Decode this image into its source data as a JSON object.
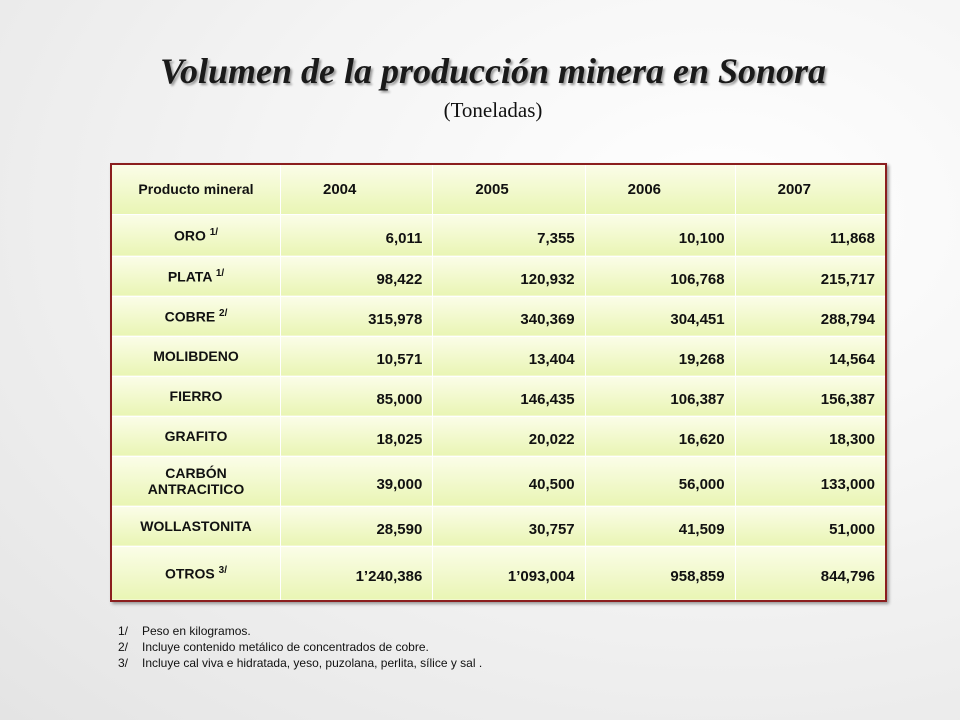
{
  "header": {
    "title": "Volumen de la producción minera en Sonora",
    "subtitle": "(Toneladas)"
  },
  "table": {
    "columns": [
      "Producto mineral",
      "2004",
      "2005",
      "2006",
      "2007"
    ],
    "rows": [
      {
        "product": "ORO",
        "note": "1/",
        "values": [
          "6,011",
          "7,355",
          "10,100",
          "11,868"
        ]
      },
      {
        "product": "PLATA",
        "note": "1/",
        "values": [
          "98,422",
          "120,932",
          "106,768",
          "215,717"
        ]
      },
      {
        "product": "COBRE",
        "note": "2/",
        "values": [
          "315,978",
          "340,369",
          "304,451",
          "288,794"
        ]
      },
      {
        "product": "MOLIBDENO",
        "values": [
          "10,571",
          "13,404",
          "19,268",
          "14,564"
        ]
      },
      {
        "product": "FIERRO",
        "values": [
          "85,000",
          "146,435",
          "106,387",
          "156,387"
        ]
      },
      {
        "product": "GRAFITO",
        "values": [
          "18,025",
          "20,022",
          "16,620",
          "18,300"
        ]
      },
      {
        "product": "CARBÓN ANTRACITICO",
        "values": [
          "39,000",
          "40,500",
          "56,000",
          "133,000"
        ]
      },
      {
        "product": "WOLLASTONITA",
        "values": [
          "28,590",
          "30,757",
          "41,509",
          "51,000"
        ]
      },
      {
        "product": "OTROS",
        "note": "3/",
        "values": [
          "1’240,386",
          "1’093,004",
          "958,859",
          "844,796"
        ]
      }
    ]
  },
  "footnotes": [
    {
      "mark": "1/",
      "text": "Peso en kilogramos."
    },
    {
      "mark": "2/",
      "text": "Incluye contenido metálico de concentrados de cobre."
    },
    {
      "mark": "3/",
      "text": "Incluye cal viva e hidratada, yeso, puzolana, perlita, sílice y sal ."
    }
  ]
}
